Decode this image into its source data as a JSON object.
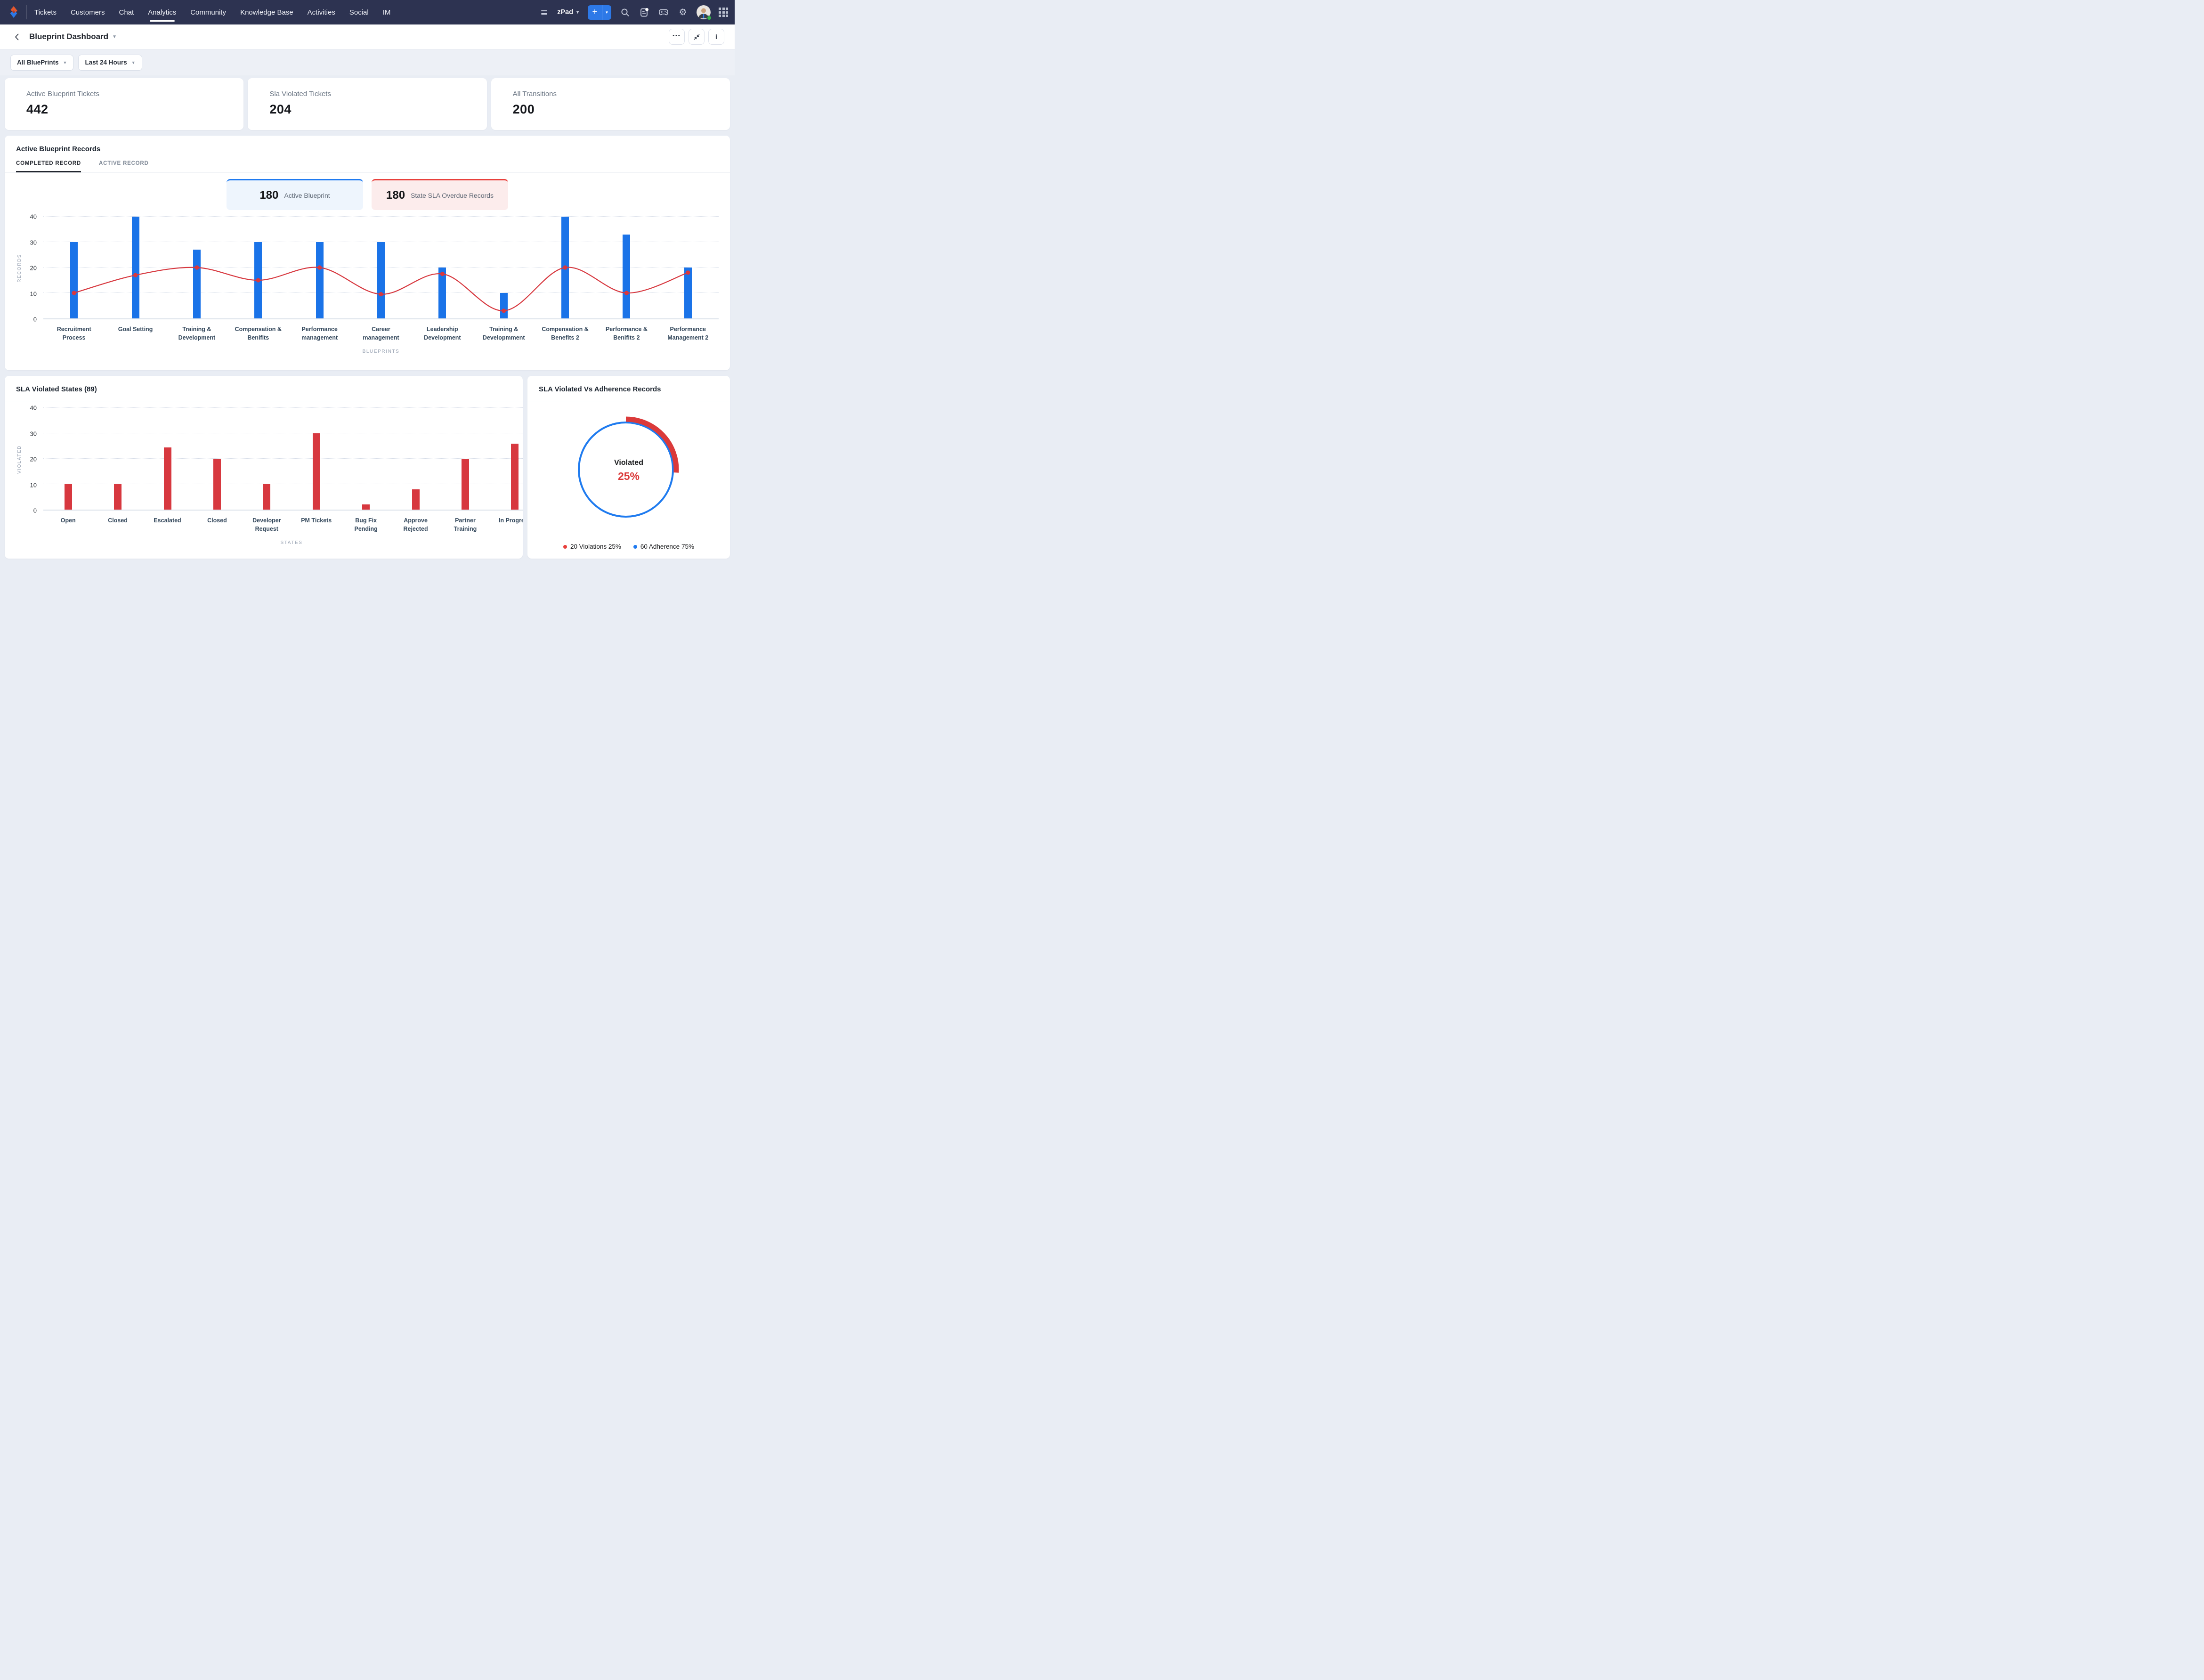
{
  "nav": {
    "items": [
      "Tickets",
      "Customers",
      "Chat",
      "Analytics",
      "Community",
      "Knowledge Base",
      "Activities",
      "Social",
      "IM"
    ],
    "active_item": "Analytics",
    "workspace": "zPad",
    "add_button": "+",
    "status_color": "#35b34a"
  },
  "header": {
    "title": "Blueprint Dashboard",
    "more_label": "•••",
    "info_label": "i"
  },
  "filters": {
    "blueprint": "All BluePrints",
    "time_range": "Last 24 Hours"
  },
  "kpis": [
    {
      "label": "Active Blueprint Tickets",
      "value": "442"
    },
    {
      "label": "Sla Violated Tickets",
      "value": "204"
    },
    {
      "label": "All Transitions",
      "value": "200"
    }
  ],
  "records_panel": {
    "title": "Active Blueprint Records",
    "tabs": [
      "COMPLETED RECORD",
      "ACTIVE RECORD"
    ],
    "active_tab": "COMPLETED RECORD",
    "stats": [
      {
        "value": "180",
        "label": "Active Blueprint",
        "color": "#1f7af0",
        "bg": "#eef5fd"
      },
      {
        "value": "180",
        "label": "State SLA Overdue Records",
        "color": "#e8403c",
        "bg": "#fcecec"
      }
    ]
  },
  "chart_data": [
    {
      "id": "active-blueprint-records",
      "type": "bar+line",
      "title": "Active Blueprint Records",
      "categories": [
        "Recruitment Process",
        "Goal Setting",
        "Training & Development",
        "Compensation & Benifits",
        "Performance management",
        "Career management",
        "Leadership Development",
        "Training & Developmment",
        "Compensation & Benefits 2",
        "Performance & Benifits 2",
        "Performance Management 2"
      ],
      "series": [
        {
          "name": "Records",
          "type": "bar",
          "color": "#1a73e8",
          "values": [
            30,
            40,
            27,
            30,
            30,
            30,
            20,
            10,
            40,
            33,
            20
          ]
        },
        {
          "name": "Trend",
          "type": "line",
          "color": "#d7383f",
          "values": [
            10,
            17,
            20,
            15,
            20,
            9.5,
            17.5,
            3,
            20,
            10,
            18
          ]
        }
      ],
      "xlabel": "BLUEPRINTS",
      "ylabel": "RECORDS",
      "ylim": [
        0,
        40
      ],
      "yticks": [
        0,
        10,
        20,
        30,
        40
      ],
      "grid": "horizontal-dotted",
      "legend": "none"
    },
    {
      "id": "sla-violated-states",
      "type": "bar",
      "title": "SLA Violated States (89)",
      "categories": [
        "Open",
        "Closed",
        "Escalated",
        "Closed",
        "Developer Request",
        "PM Tickets",
        "Bug Fix Pending",
        "Approve Rejected",
        "Partner Training",
        "In Progress"
      ],
      "values": [
        10,
        10,
        24.5,
        20,
        10,
        30,
        2,
        8,
        20,
        26
      ],
      "color": "#d7383f",
      "xlabel": "STATES",
      "ylabel": "VIOLATED",
      "ylim": [
        0,
        40
      ],
      "yticks": [
        0,
        10,
        20,
        30,
        40
      ],
      "grid": "horizontal-dotted",
      "legend": "none"
    },
    {
      "id": "sla-violated-vs-adherence",
      "type": "donut",
      "title": "SLA Violated Vs Adherence Records",
      "center": {
        "label": "Violated",
        "value": "25%"
      },
      "ring_color": "#1f7bef",
      "arc_color": "#db3a3a",
      "slices": [
        {
          "label": "Violations",
          "count": 20,
          "pct": 25,
          "color": "#e8403c"
        },
        {
          "label": "Adherence",
          "count": 60,
          "pct": 75,
          "color": "#1f7af0"
        }
      ],
      "legend_position": "bottom"
    }
  ]
}
